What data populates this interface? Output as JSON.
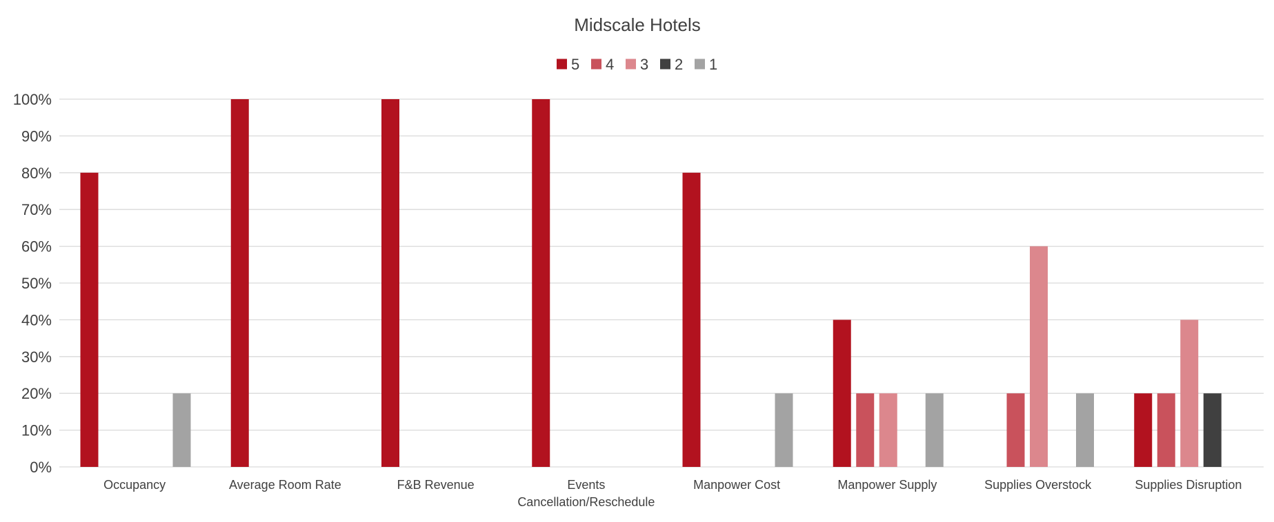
{
  "chart_data": {
    "type": "bar",
    "title": "Midscale Hotels",
    "xlabel": "",
    "ylabel": "",
    "ylim": [
      0,
      100
    ],
    "yticks": [
      "0%",
      "10%",
      "20%",
      "30%",
      "40%",
      "50%",
      "60%",
      "70%",
      "80%",
      "90%",
      "100%"
    ],
    "grid": true,
    "legend_position": "top",
    "categories": [
      "Occupancy",
      "Average Room Rate",
      "F&B Revenue",
      "Events Cancellation/Reschedule",
      "Manpower Cost",
      "Manpower Supply",
      "Supplies Overstock",
      "Supplies Disruption"
    ],
    "series": [
      {
        "name": "5",
        "color": "#b2121f",
        "values": [
          80,
          100,
          100,
          100,
          80,
          40,
          0,
          20
        ]
      },
      {
        "name": "4",
        "color": "#c9525c",
        "values": [
          0,
          0,
          0,
          0,
          0,
          20,
          20,
          20
        ]
      },
      {
        "name": "3",
        "color": "#dc878d",
        "values": [
          0,
          0,
          0,
          0,
          0,
          20,
          60,
          40
        ]
      },
      {
        "name": "2",
        "color": "#404040",
        "values": [
          0,
          0,
          0,
          0,
          0,
          0,
          0,
          20
        ]
      },
      {
        "name": "1",
        "color": "#a3a3a3",
        "values": [
          20,
          0,
          0,
          0,
          20,
          20,
          20,
          0
        ]
      }
    ]
  }
}
